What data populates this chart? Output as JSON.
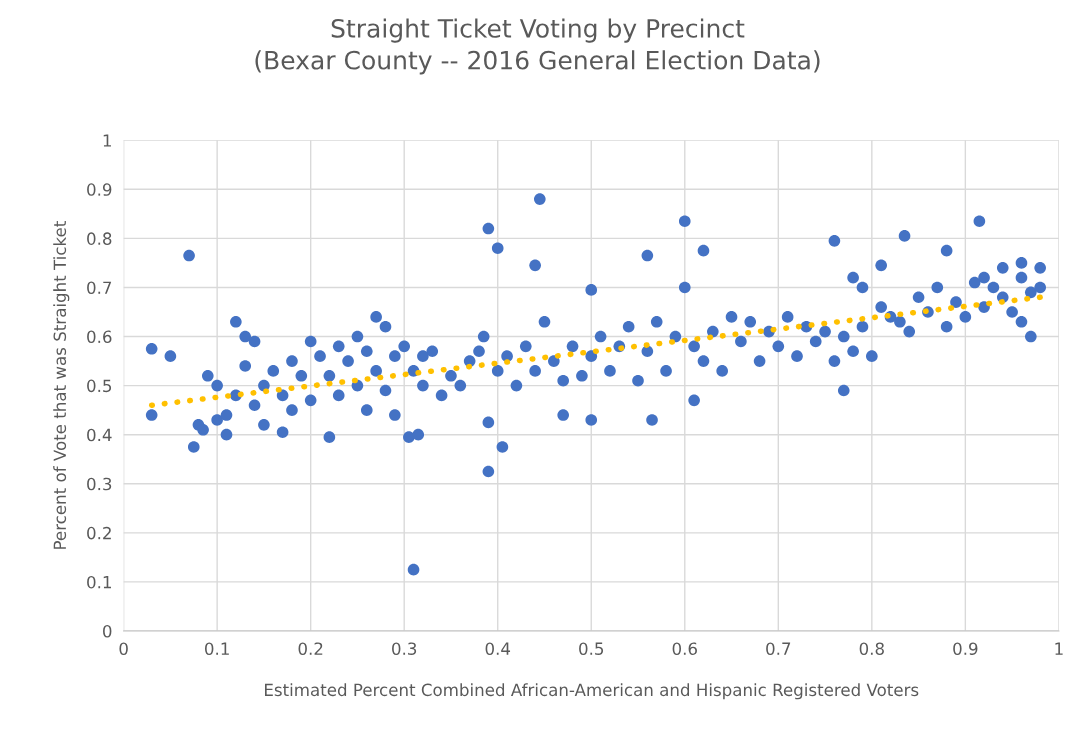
{
  "chart_data": {
    "type": "scatter",
    "title": "Straight Ticket Voting by Precinct\n(Bexar County -- 2016 General Election Data)",
    "xlabel": "Estimated Percent Combined African-American and Hispanic Registered Voters",
    "ylabel": "Percent of Vote that was Straight Ticket",
    "xlim": [
      0,
      1
    ],
    "ylim": [
      0,
      1
    ],
    "xticks": [
      0,
      0.1,
      0.2,
      0.3,
      0.4,
      0.5,
      0.6,
      0.7,
      0.8,
      0.9,
      1
    ],
    "yticks": [
      0,
      0.1,
      0.2,
      0.3,
      0.4,
      0.5,
      0.6,
      0.7,
      0.8,
      0.9,
      1
    ],
    "grid": true,
    "series": [
      {
        "color": "#4472c4",
        "marker": "circle",
        "x": [
          0.03,
          0.05,
          0.03,
          0.07,
          0.075,
          0.08,
          0.085,
          0.09,
          0.1,
          0.12,
          0.11,
          0.11,
          0.13,
          0.14,
          0.15,
          0.17,
          0.18,
          0.2,
          0.22,
          0.27,
          0.28,
          0.31,
          0.305,
          0.315,
          0.39,
          0.4,
          0.44,
          0.445,
          0.39,
          0.39,
          0.405,
          0.5,
          0.5,
          0.47,
          0.56,
          0.6,
          0.62,
          0.6,
          0.565,
          0.61,
          0.76,
          0.835,
          0.915,
          0.77,
          0.88,
          0.81,
          0.78,
          0.79,
          0.96,
          0.97,
          0.92,
          0.1,
          0.12,
          0.13,
          0.14,
          0.15,
          0.16,
          0.17,
          0.18,
          0.19,
          0.2,
          0.21,
          0.22,
          0.23,
          0.23,
          0.24,
          0.25,
          0.25,
          0.26,
          0.26,
          0.27,
          0.28,
          0.29,
          0.29,
          0.3,
          0.31,
          0.32,
          0.32,
          0.33,
          0.34,
          0.35,
          0.36,
          0.37,
          0.38,
          0.385,
          0.4,
          0.41,
          0.42,
          0.43,
          0.44,
          0.45,
          0.46,
          0.47,
          0.48,
          0.49,
          0.5,
          0.51,
          0.52,
          0.53,
          0.54,
          0.55,
          0.56,
          0.57,
          0.58,
          0.59,
          0.61,
          0.62,
          0.63,
          0.64,
          0.65,
          0.66,
          0.67,
          0.68,
          0.69,
          0.7,
          0.71,
          0.72,
          0.73,
          0.74,
          0.75,
          0.76,
          0.77,
          0.78,
          0.79,
          0.8,
          0.81,
          0.82,
          0.83,
          0.84,
          0.85,
          0.86,
          0.87,
          0.88,
          0.89,
          0.9,
          0.91,
          0.92,
          0.93,
          0.94,
          0.95,
          0.96,
          0.97,
          0.98,
          0.98,
          0.96,
          0.94
        ],
        "values": [
          0.575,
          0.56,
          0.44,
          0.765,
          0.375,
          0.42,
          0.41,
          0.52,
          0.43,
          0.63,
          0.4,
          0.44,
          0.6,
          0.59,
          0.42,
          0.405,
          0.45,
          0.59,
          0.395,
          0.64,
          0.62,
          0.125,
          0.395,
          0.4,
          0.82,
          0.78,
          0.745,
          0.88,
          0.425,
          0.325,
          0.375,
          0.695,
          0.43,
          0.44,
          0.765,
          0.835,
          0.775,
          0.7,
          0.43,
          0.47,
          0.795,
          0.805,
          0.835,
          0.49,
          0.775,
          0.745,
          0.72,
          0.7,
          0.75,
          0.6,
          0.72,
          0.5,
          0.48,
          0.54,
          0.46,
          0.5,
          0.53,
          0.48,
          0.55,
          0.52,
          0.47,
          0.56,
          0.52,
          0.58,
          0.48,
          0.55,
          0.6,
          0.5,
          0.45,
          0.57,
          0.53,
          0.49,
          0.56,
          0.44,
          0.58,
          0.53,
          0.56,
          0.5,
          0.57,
          0.48,
          0.52,
          0.5,
          0.55,
          0.57,
          0.6,
          0.53,
          0.56,
          0.5,
          0.58,
          0.53,
          0.63,
          0.55,
          0.51,
          0.58,
          0.52,
          0.56,
          0.6,
          0.53,
          0.58,
          0.62,
          0.51,
          0.57,
          0.63,
          0.53,
          0.6,
          0.58,
          0.55,
          0.61,
          0.53,
          0.64,
          0.59,
          0.63,
          0.55,
          0.61,
          0.58,
          0.64,
          0.56,
          0.62,
          0.59,
          0.61,
          0.55,
          0.6,
          0.57,
          0.62,
          0.56,
          0.66,
          0.64,
          0.63,
          0.61,
          0.68,
          0.65,
          0.7,
          0.62,
          0.67,
          0.64,
          0.71,
          0.66,
          0.7,
          0.68,
          0.65,
          0.72,
          0.69,
          0.74,
          0.7,
          0.63,
          0.74
        ]
      },
      {
        "type": "line",
        "color": "#ffc000",
        "line_style": "dotted",
        "marker": "none",
        "x": [
          0.03,
          0.98
        ],
        "values": [
          0.46,
          0.68
        ]
      }
    ]
  }
}
